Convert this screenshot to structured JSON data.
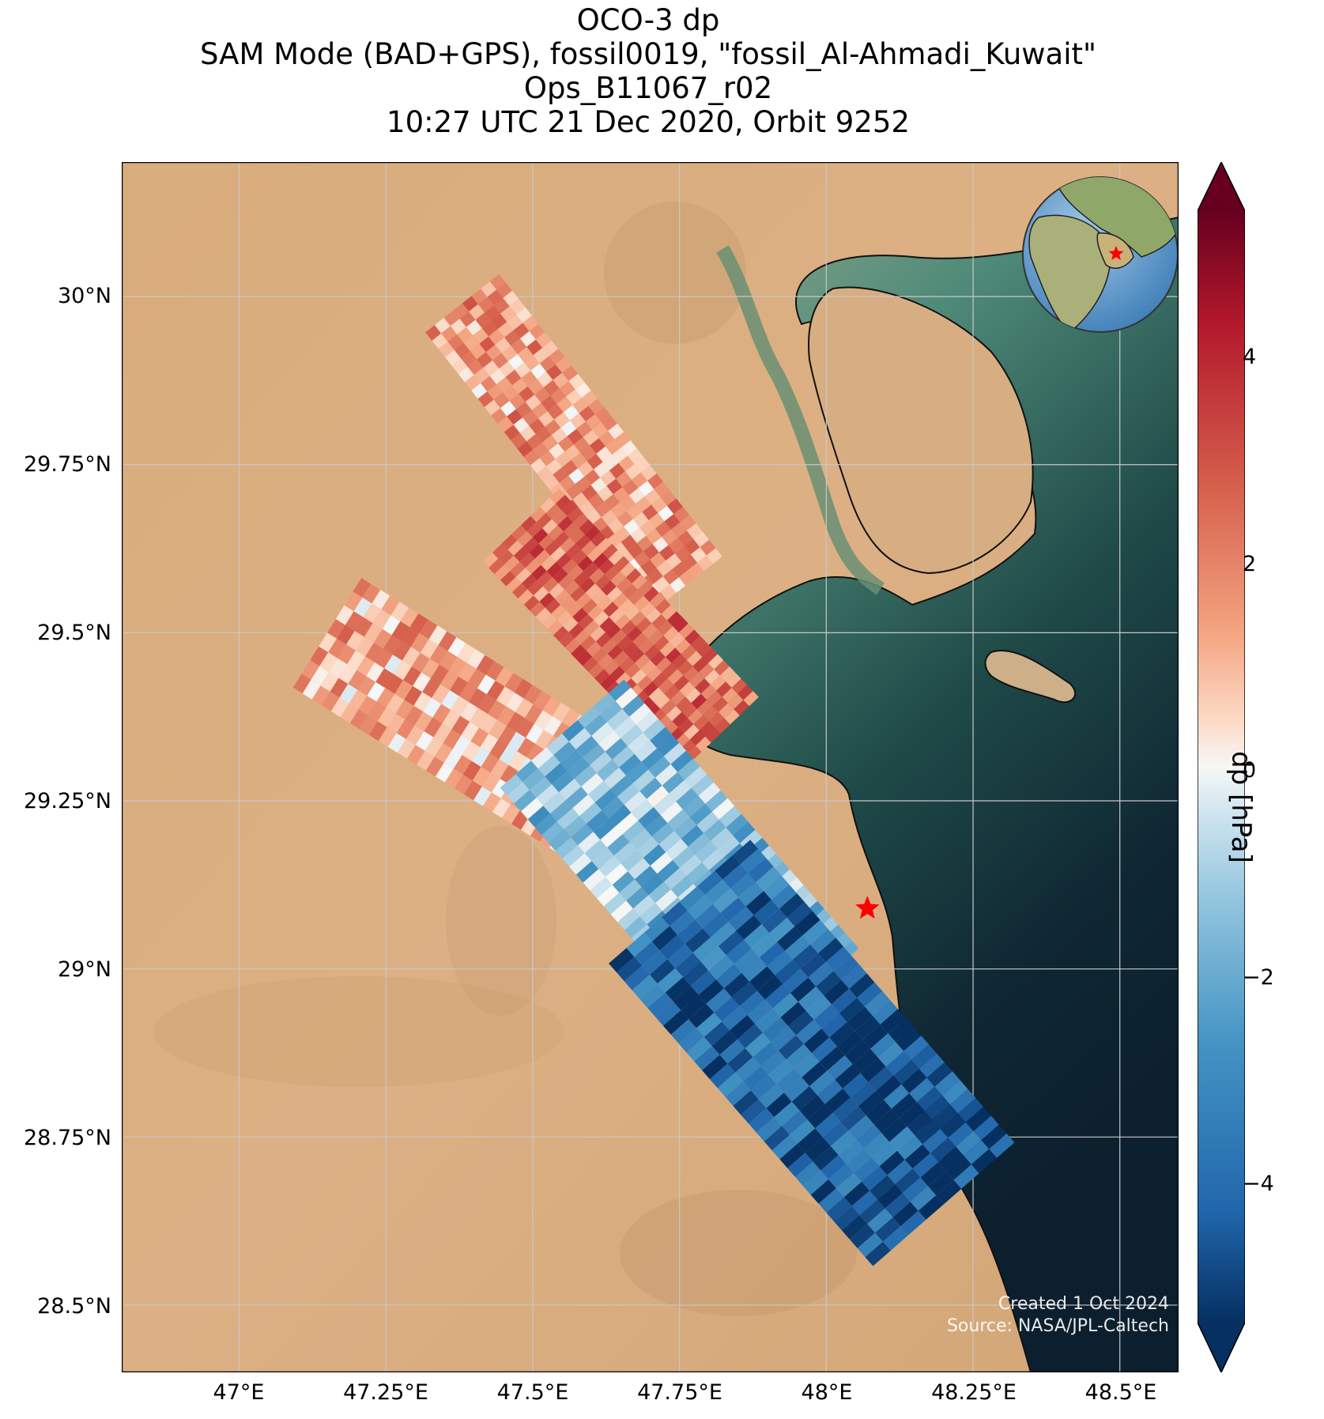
{
  "title": {
    "line1": "OCO-3 dp",
    "line2": "SAM Mode (BAD+GPS), fossil0019, \"fossil_Al-Ahmadi_Kuwait\"",
    "line3": "Ops_B11067_r02",
    "line4": "10:27 UTC 21 Dec 2020, Orbit 9252"
  },
  "map": {
    "lat_ticks": [
      "30°N",
      "29.75°N",
      "29.5°N",
      "29.25°N",
      "29°N",
      "28.75°N",
      "28.5°N"
    ],
    "lon_ticks": [
      "47°E",
      "47.25°E",
      "47.5°E",
      "47.75°E",
      "48°E",
      "48.25°E",
      "48.5°E"
    ],
    "lat_range": [
      28.4,
      30.2
    ],
    "lon_range": [
      46.8,
      48.6
    ],
    "grid": true,
    "basemap": "satellite imagery (desert, Persian Gulf)",
    "target_marker": {
      "icon": "star",
      "color": "#ff0000",
      "lat": 29.09,
      "lon": 48.07
    },
    "inset": "globe with red star over Kuwait",
    "credit_line1": "Created 1 Oct 2024",
    "credit_line2": "Source: NASA/JPL-Caltech"
  },
  "colorbar": {
    "label": "dp [hPa]",
    "ticks": [
      "4",
      "2",
      "0",
      "−2",
      "−4"
    ],
    "range": [
      -5.5,
      5.5
    ],
    "colormap": "RdBu_r",
    "extend": "both"
  },
  "chart_data": {
    "type": "heatmap",
    "variable": "dp",
    "units": "hPa",
    "swaths": [
      {
        "lat_start": 29.99,
        "lon_start": 47.38,
        "lat_end": 29.57,
        "lon_end": 47.76,
        "mean_dp": 1.5
      },
      {
        "lat_start": 29.66,
        "lon_start": 47.48,
        "lat_end": 29.35,
        "lon_end": 47.82,
        "mean_dp": 2.5
      },
      {
        "lat_start": 29.5,
        "lon_start": 47.15,
        "lat_end": 29.2,
        "lon_end": 47.7,
        "mean_dp": 1.2
      },
      {
        "lat_start": 29.35,
        "lon_start": 47.55,
        "lat_end": 28.95,
        "lon_end": 47.95,
        "mean_dp": -1.5
      },
      {
        "lat_start": 29.1,
        "lon_start": 47.75,
        "lat_end": 28.65,
        "lon_end": 48.2,
        "mean_dp": -4.0
      }
    ]
  }
}
